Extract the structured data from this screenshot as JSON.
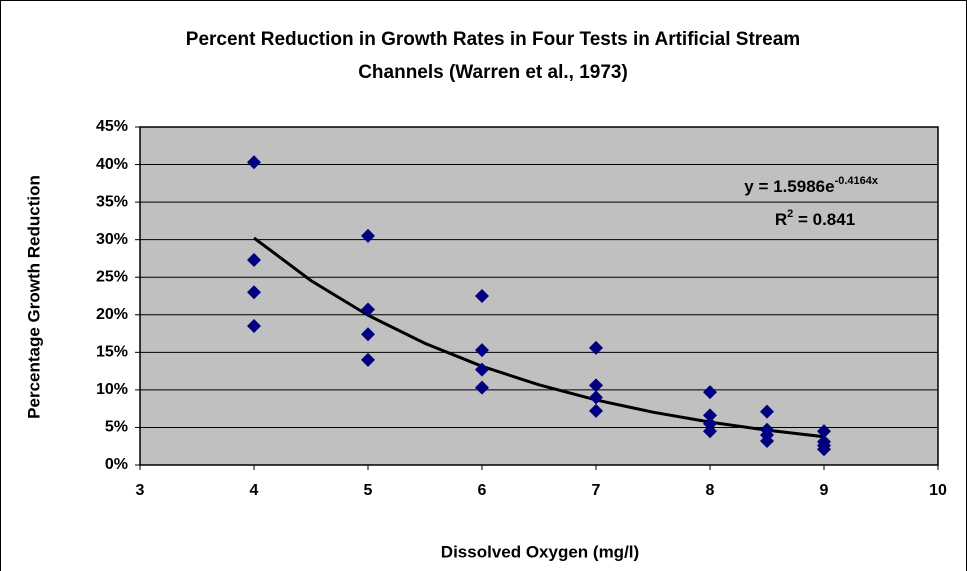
{
  "chart_data": {
    "type": "scatter",
    "title_lines": [
      "Percent Reduction in Growth Rates in Four Tests in Artificial Stream",
      "Channels (Warren et al., 1973)"
    ],
    "x_label": "Dissolved Oxygen (mg/l)",
    "y_label": "Percentage Growth Reduction",
    "points": {
      "color": "#000080",
      "x": [
        4,
        4,
        4,
        4,
        5,
        5,
        5,
        5,
        6,
        6,
        6,
        6,
        7,
        7,
        7,
        7,
        8,
        8,
        8,
        8,
        8.5,
        8.5,
        8.5,
        8.5,
        9,
        9,
        9,
        9
      ],
      "values": [
        40.3,
        27.3,
        23.0,
        18.5,
        30.5,
        20.7,
        17.4,
        14.0,
        22.5,
        15.3,
        12.7,
        10.3,
        15.6,
        10.6,
        9.0,
        7.2,
        9.7,
        6.6,
        5.5,
        4.5,
        7.1,
        4.7,
        4.0,
        3.2,
        4.5,
        3.1,
        2.6,
        2.1
      ]
    },
    "trendline": {
      "color": "#000000",
      "x": [
        4,
        4.5,
        5,
        5.5,
        6,
        6.5,
        7,
        7.5,
        8,
        8.5,
        9
      ],
      "values": [
        30.23,
        24.55,
        19.94,
        16.19,
        13.14,
        10.67,
        8.66,
        7.03,
        5.71,
        4.64,
        3.76
      ],
      "equation": "y = 1.5986e",
      "equation_exponent": "-0.4164x",
      "r2_base": "R",
      "r2_exponent": "2",
      "r2_value": " = 0.841"
    },
    "xlim": [
      3,
      10
    ],
    "xticks": [
      3,
      4,
      5,
      6,
      7,
      8,
      9,
      10
    ],
    "ylim": [
      0,
      45
    ],
    "yticks": [
      {
        "value": 0,
        "label": "0%"
      },
      {
        "value": 5,
        "label": "5%"
      },
      {
        "value": 10,
        "label": "10%"
      },
      {
        "value": 15,
        "label": "15%"
      },
      {
        "value": 20,
        "label": "20%"
      },
      {
        "value": 25,
        "label": "25%"
      },
      {
        "value": 30,
        "label": "30%"
      },
      {
        "value": 35,
        "label": "35%"
      },
      {
        "value": 40,
        "label": "40%"
      },
      {
        "value": 45,
        "label": "45%"
      }
    ],
    "grid": true,
    "plot_background": "#c0c0c0"
  }
}
